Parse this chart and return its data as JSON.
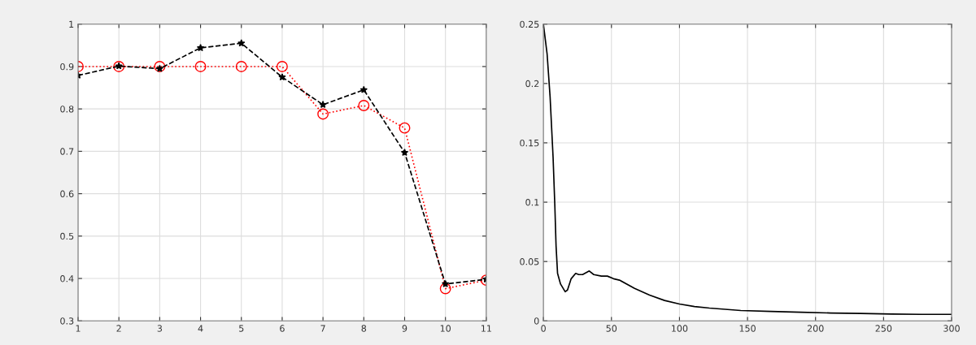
{
  "chart_data": [
    {
      "type": "line",
      "x": [
        1,
        2,
        3,
        4,
        5,
        6,
        7,
        8,
        9,
        10,
        11
      ],
      "xlim": [
        1,
        11
      ],
      "xticks": [
        1,
        2,
        3,
        4,
        5,
        6,
        7,
        8,
        9,
        10,
        11
      ],
      "ylim": [
        0.3,
        1
      ],
      "yticks": [
        0.3,
        0.4,
        0.5,
        0.6,
        0.7,
        0.8,
        0.9,
        1
      ],
      "grid": true,
      "series": [
        {
          "color": "#ff0000",
          "marker": "circle",
          "line_style": "dotted",
          "values": [
            0.9,
            0.9,
            0.9,
            0.9,
            0.9,
            0.9,
            0.788,
            0.808,
            0.755,
            0.376,
            0.396
          ]
        },
        {
          "color": "#000000",
          "marker": "star",
          "line_style": "dashed",
          "values": [
            0.879,
            0.901,
            0.895,
            0.944,
            0.955,
            0.875,
            0.81,
            0.845,
            0.697,
            0.387,
            0.398
          ]
        }
      ]
    },
    {
      "type": "line",
      "xlim": [
        0,
        300
      ],
      "xticks": [
        0,
        50,
        100,
        150,
        200,
        250,
        300
      ],
      "ylim": [
        0,
        0.25
      ],
      "yticks": [
        0,
        0.05,
        0.1,
        0.15,
        0.2,
        0.25
      ],
      "grid": true,
      "series": [
        {
          "color": "#000000",
          "marker": "none",
          "line_style": "solid",
          "x": [
            0,
            2.7,
            4.9,
            7.1,
            8.4,
            9.3,
            10.4,
            12.6,
            16,
            17.7,
            20.4,
            23.7,
            26,
            28.8,
            33.7,
            37,
            42.6,
            47,
            51.5,
            55.9,
            67,
            78,
            89,
            100,
            111,
            122,
            145,
            167,
            189,
            211,
            233,
            256,
            278,
            300
          ],
          "values": [
            0.25,
            0.225,
            0.189,
            0.138,
            0.097,
            0.063,
            0.04,
            0.031,
            0.0245,
            0.026,
            0.0355,
            0.04,
            0.039,
            0.039,
            0.042,
            0.039,
            0.0377,
            0.0377,
            0.0355,
            0.0343,
            0.0274,
            0.0217,
            0.0172,
            0.0142,
            0.0121,
            0.0108,
            0.0087,
            0.008,
            0.0073,
            0.0066,
            0.0062,
            0.0057,
            0.0055,
            0.0055
          ]
        }
      ]
    }
  ]
}
